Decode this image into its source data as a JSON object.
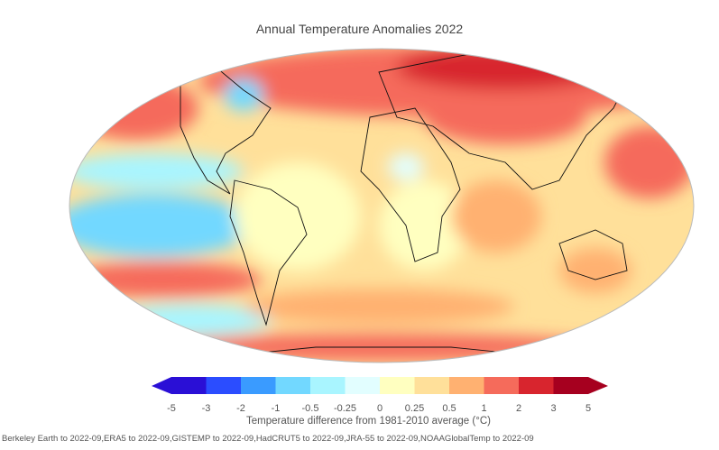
{
  "title": "Annual Temperature Anomalies 2022",
  "colorbar": {
    "label": "Temperature difference from 1981-2010 average (°C)",
    "ticks": [
      "-5",
      "-3",
      "-2",
      "-1",
      "-0.5",
      "-0.25",
      "0",
      "0.25",
      "0.5",
      "1",
      "2",
      "3",
      "5"
    ],
    "colors": [
      "#2a0fd6",
      "#2b4dff",
      "#3a9bff",
      "#72d8ff",
      "#a9f5ff",
      "#e2feff",
      "#ffffc0",
      "#ffe09a",
      "#ffb171",
      "#f56b5b",
      "#d8252e",
      "#a6001f"
    ]
  },
  "footer": "Berkeley Earth to 2022-09,ERA5 to 2022-09,GISTEMP to 2022-09,HadCRUT5 to 2022-09,JRA-55 to 2022-09,NOAAGlobalTemp to 2022-09"
}
